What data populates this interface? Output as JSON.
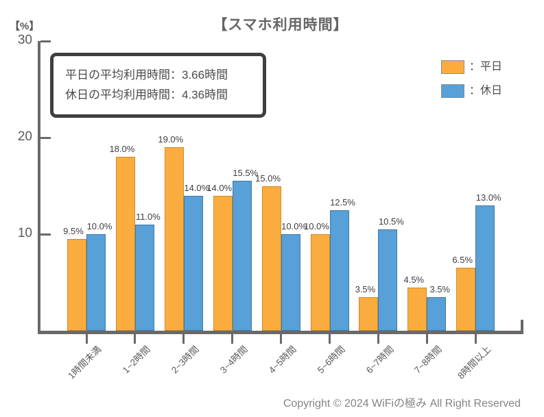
{
  "annotation": {
    "lines": [
      "平日の平均利用時間：3.66時間",
      "休日の平均利用時間：4.36時間"
    ]
  },
  "legend": {
    "items": [
      {
        "label": "：平日"
      },
      {
        "label": "：休日"
      }
    ]
  },
  "copyright": "Copyright © 2024 WiFiの極み All Right Reserved",
  "colors": {
    "weekday_fill": "#FAAD3E",
    "weekday_edge": "#C98B2D",
    "holiday_fill": "#57A0D8",
    "holiday_edge": "#4379A4",
    "axis": "#696969",
    "value_label_text": "#3d3d3d",
    "tick_label_text": "#5a5a5a",
    "annotation_border": "#3f3f3f",
    "copyright_text": "#848484"
  },
  "chart_data": {
    "type": "bar",
    "title": "【スマホ利用時間】",
    "y_unit": "【%】",
    "categories": [
      "1時間未満",
      "1~2時間",
      "2~3時間",
      "3~4時間",
      "4~5時間",
      "5~6時間",
      "6~7時間",
      "7~8時間",
      "8時間以上"
    ],
    "series": [
      {
        "name": "平日",
        "color": "#FAAD3E",
        "edge": "#C98B2D",
        "values": [
          9.5,
          18.0,
          19.0,
          14.0,
          15.0,
          10.0,
          3.5,
          4.5,
          6.5
        ]
      },
      {
        "name": "休日",
        "color": "#57A0D8",
        "edge": "#4379A4",
        "values": [
          10.0,
          11.0,
          14.0,
          15.5,
          10.0,
          12.5,
          10.5,
          3.5,
          13.0
        ]
      }
    ],
    "value_label_suffix": "%",
    "value_label_decimals": 1,
    "xlabel": "",
    "ylabel": "%",
    "ylim": [
      0,
      30
    ],
    "yticks": [
      10,
      20,
      30
    ],
    "grid": false,
    "legend_position": "top-right"
  }
}
